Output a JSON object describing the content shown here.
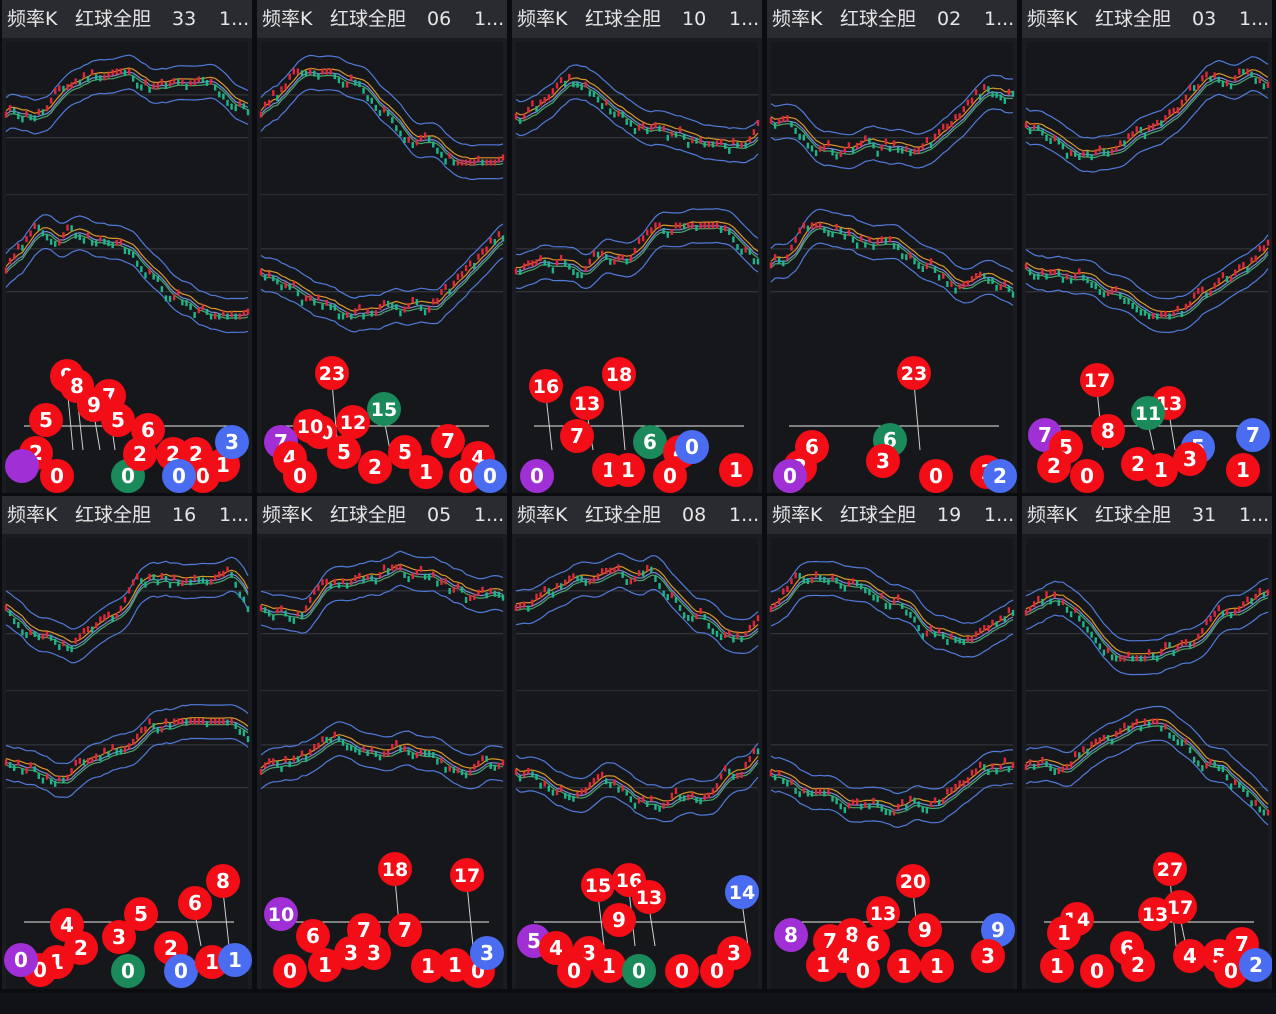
{
  "window": {
    "tab_count": 10
  },
  "panels": [
    {
      "title": "频率K",
      "subtitle": "红球全胆",
      "number": "33",
      "more": "1...",
      "balls": [
        [
          "9",
          "red"
        ],
        [
          "8",
          "red"
        ],
        [
          "7",
          "red"
        ],
        [
          "5",
          "red"
        ],
        [
          "9",
          "red"
        ],
        [
          "5",
          "red"
        ],
        [
          "6",
          "red"
        ],
        [
          "2",
          "red"
        ],
        [
          "0",
          "red"
        ],
        [
          "0",
          "green"
        ],
        [
          "2",
          "red"
        ],
        [
          "2",
          "red"
        ],
        [
          "2",
          "red"
        ],
        [
          "0",
          "red"
        ],
        [
          "1",
          "red"
        ],
        [
          "3",
          "blue"
        ],
        [
          "",
          "purple"
        ],
        [
          "0",
          "blue"
        ]
      ]
    },
    {
      "title": "频率K",
      "subtitle": "红球全胆",
      "number": "06",
      "more": "1...",
      "balls": [
        [
          "23",
          "red"
        ],
        [
          "15",
          "green"
        ],
        [
          "10",
          "red"
        ],
        [
          "12",
          "red"
        ],
        [
          "10",
          "red"
        ],
        [
          "5",
          "red"
        ],
        [
          "7",
          "purple"
        ],
        [
          "4",
          "red"
        ],
        [
          "0",
          "red"
        ],
        [
          "2",
          "red"
        ],
        [
          "5",
          "red"
        ],
        [
          "7",
          "red"
        ],
        [
          "4",
          "red"
        ],
        [
          "1",
          "red"
        ],
        [
          "0",
          "red"
        ],
        [
          "0",
          "blue"
        ]
      ]
    },
    {
      "title": "频率K",
      "subtitle": "红球全胆",
      "number": "10",
      "more": "1...",
      "balls": [
        [
          "16",
          "red"
        ],
        [
          "18",
          "red"
        ],
        [
          "13",
          "red"
        ],
        [
          "7",
          "red"
        ],
        [
          "6",
          "green"
        ],
        [
          "4",
          "red"
        ],
        [
          "0",
          "purple"
        ],
        [
          "1",
          "red"
        ],
        [
          "1",
          "red"
        ],
        [
          "0",
          "red"
        ],
        [
          "1",
          "red"
        ],
        [
          "0",
          "blue"
        ]
      ]
    },
    {
      "title": "频率K",
      "subtitle": "红球全胆",
      "number": "02",
      "more": "1...",
      "balls": [
        [
          "23",
          "red"
        ],
        [
          "6",
          "green"
        ],
        [
          "6",
          "red"
        ],
        [
          "2",
          "red"
        ],
        [
          "3",
          "red"
        ],
        [
          "0",
          "red"
        ],
        [
          "1",
          "red"
        ],
        [
          "0",
          "purple"
        ],
        [
          "2",
          "blue"
        ]
      ]
    },
    {
      "title": "频率K",
      "subtitle": "红球全胆",
      "number": "03",
      "more": "1...",
      "balls": [
        [
          "17",
          "red"
        ],
        [
          "13",
          "red"
        ],
        [
          "11",
          "green"
        ],
        [
          "8",
          "red"
        ],
        [
          "7",
          "purple"
        ],
        [
          "5",
          "red"
        ],
        [
          "7",
          "blue"
        ],
        [
          "5",
          "blue"
        ],
        [
          "2",
          "red"
        ],
        [
          "0",
          "red"
        ],
        [
          "2",
          "red"
        ],
        [
          "1",
          "red"
        ],
        [
          "3",
          "red"
        ],
        [
          "1",
          "red"
        ]
      ]
    },
    {
      "title": "频率K",
      "subtitle": "红球全胆",
      "number": "16",
      "more": "1...",
      "balls": [
        [
          "8",
          "red"
        ],
        [
          "6",
          "red"
        ],
        [
          "5",
          "red"
        ],
        [
          "4",
          "red"
        ],
        [
          "3",
          "red"
        ],
        [
          "2",
          "red"
        ],
        [
          "2",
          "red"
        ],
        [
          "1",
          "red"
        ],
        [
          "0",
          "red"
        ],
        [
          "0",
          "green"
        ],
        [
          "0",
          "blue"
        ],
        [
          "1",
          "red"
        ],
        [
          "1",
          "blue"
        ],
        [
          "0",
          "purple"
        ]
      ]
    },
    {
      "title": "频率K",
      "subtitle": "红球全胆",
      "number": "05",
      "more": "1...",
      "balls": [
        [
          "18",
          "red"
        ],
        [
          "17",
          "red"
        ],
        [
          "10",
          "purple"
        ],
        [
          "6",
          "red"
        ],
        [
          "7",
          "red"
        ],
        [
          "7",
          "red"
        ],
        [
          "3",
          "red"
        ],
        [
          "3",
          "red"
        ],
        [
          "0",
          "red"
        ],
        [
          "1",
          "red"
        ],
        [
          "1",
          "red"
        ],
        [
          "1",
          "red"
        ],
        [
          "0",
          "red"
        ],
        [
          "3",
          "blue"
        ]
      ]
    },
    {
      "title": "频率K",
      "subtitle": "红球全胆",
      "number": "08",
      "more": "1...",
      "balls": [
        [
          "15",
          "red"
        ],
        [
          "16",
          "red"
        ],
        [
          "13",
          "red"
        ],
        [
          "9",
          "red"
        ],
        [
          "14",
          "blue"
        ],
        [
          "5",
          "purple"
        ],
        [
          "4",
          "red"
        ],
        [
          "3",
          "red"
        ],
        [
          "0",
          "red"
        ],
        [
          "1",
          "red"
        ],
        [
          "0",
          "green"
        ],
        [
          "0",
          "red"
        ],
        [
          "0",
          "red"
        ],
        [
          "3",
          "red"
        ]
      ]
    },
    {
      "title": "频率K",
      "subtitle": "红球全胆",
      "number": "19",
      "more": "1...",
      "balls": [
        [
          "20",
          "red"
        ],
        [
          "13",
          "red"
        ],
        [
          "9",
          "red"
        ],
        [
          "9",
          "blue"
        ],
        [
          "8",
          "purple"
        ],
        [
          "8",
          "red"
        ],
        [
          "7",
          "red"
        ],
        [
          "6",
          "red"
        ],
        [
          "4",
          "red"
        ],
        [
          "1",
          "red"
        ],
        [
          "0",
          "red"
        ],
        [
          "1",
          "red"
        ],
        [
          "1",
          "red"
        ],
        [
          "3",
          "red"
        ]
      ]
    },
    {
      "title": "频率K",
      "subtitle": "红球全胆",
      "number": "31",
      "more": "1...",
      "balls": [
        [
          "27",
          "red"
        ],
        [
          "17",
          "red"
        ],
        [
          "14",
          "red"
        ],
        [
          "13",
          "red"
        ],
        [
          "1",
          "red"
        ],
        [
          "6",
          "red"
        ],
        [
          "7",
          "red"
        ],
        [
          "4",
          "red"
        ],
        [
          "5",
          "red"
        ],
        [
          "1",
          "red"
        ],
        [
          "0",
          "red"
        ],
        [
          "2",
          "red"
        ],
        [
          "0",
          "red"
        ],
        [
          "2",
          "blue"
        ]
      ]
    }
  ],
  "colors": {
    "red": "#f20d17",
    "green": "#1b8a5a",
    "blue": "#4a6cf0",
    "purple": "#a12fd6",
    "panel_bg": "#1b1c21",
    "header_bg": "#2a2b30",
    "candle_up": "#e0283a",
    "candle_down": "#1fb58c",
    "line_blue": "#4f7bd9",
    "line_orange": "#d9962a",
    "line_green": "#45a86a"
  }
}
